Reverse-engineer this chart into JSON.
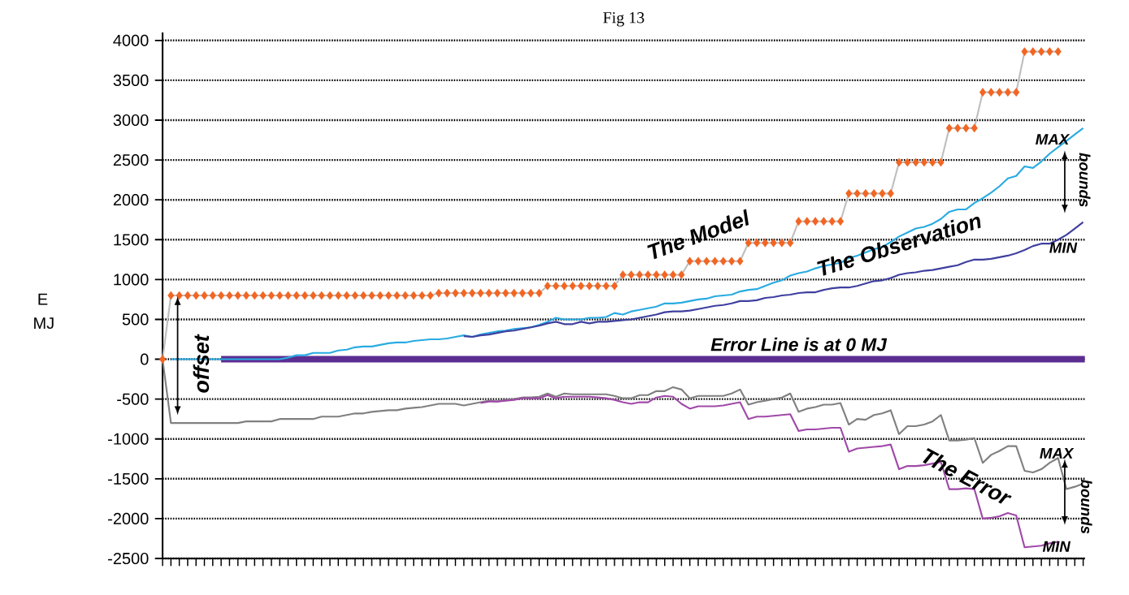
{
  "chart_data": {
    "type": "line",
    "title": "Fig 13",
    "ylabel": "E MJ",
    "categories": [
      null,
      null,
      null,
      null,
      null,
      null,
      null,
      null,
      null,
      null,
      null,
      null,
      null,
      null,
      null,
      null,
      null,
      null,
      null,
      null,
      null,
      null,
      null,
      null,
      null,
      null,
      null,
      null,
      null,
      null,
      null,
      null,
      null,
      null,
      null,
      null,
      null,
      null,
      null,
      null,
      null,
      null,
      null,
      null,
      null,
      null,
      null,
      null,
      null,
      null,
      null,
      null,
      null,
      null,
      null,
      null,
      null,
      null,
      null,
      null,
      null,
      null,
      null,
      null,
      null,
      null,
      null,
      null,
      null,
      null,
      null,
      null,
      null,
      null,
      null,
      null,
      null,
      null,
      null,
      null,
      null,
      null,
      null,
      null,
      null,
      null,
      null,
      null,
      null,
      null,
      null,
      null,
      null,
      null,
      null,
      null,
      null,
      null,
      null,
      null,
      null,
      null,
      null,
      null,
      null,
      null,
      null,
      null,
      null,
      null,
      null
    ],
    "series": [
      {
        "color": "#f26522",
        "marker": "diamond",
        "values": [
          0,
          800,
          800,
          800,
          800,
          800,
          800,
          800,
          800,
          800,
          800,
          800,
          800,
          800,
          800,
          800,
          800,
          800,
          800,
          800,
          800,
          800,
          800,
          800,
          800,
          800,
          800,
          800,
          800,
          800,
          800,
          800,
          800,
          830,
          830,
          830,
          830,
          830,
          830,
          830,
          830,
          830,
          830,
          830,
          830,
          830,
          920,
          920,
          920,
          920,
          920,
          920,
          920,
          920,
          920,
          1060,
          1060,
          1060,
          1060,
          1060,
          1060,
          1060,
          1060,
          1230,
          1230,
          1230,
          1230,
          1230,
          1230,
          1230,
          1460,
          1460,
          1460,
          1460,
          1460,
          1460,
          1730,
          1730,
          1730,
          1730,
          1730,
          1730,
          2080,
          2080,
          2080,
          2080,
          2080,
          2080,
          2470,
          2470,
          2470,
          2470,
          2470,
          2470,
          2900,
          2900,
          2900,
          2900,
          3350,
          3350,
          3350,
          3350,
          3350,
          3860,
          3860,
          3860,
          3860,
          3860,
          null,
          null,
          null
        ]
      },
      {
        "color": "#29abe2",
        "values": [
          null,
          0,
          0,
          0,
          0,
          0,
          0,
          0,
          0,
          0,
          0,
          0,
          0,
          0,
          0,
          20,
          50,
          50,
          80,
          80,
          80,
          110,
          120,
          150,
          160,
          160,
          180,
          200,
          210,
          210,
          230,
          240,
          250,
          250,
          260,
          280,
          300,
          280,
          310,
          330,
          350,
          360,
          380,
          390,
          400,
          430,
          470,
          520,
          500,
          500,
          500,
          520,
          520,
          530,
          580,
          560,
          600,
          620,
          640,
          660,
          700,
          700,
          710,
          730,
          750,
          760,
          790,
          800,
          810,
          850,
          870,
          880,
          920,
          960,
          990,
          1050,
          1080,
          1100,
          1140,
          1170,
          1190,
          1210,
          1270,
          1300,
          1340,
          1380,
          1410,
          1470,
          1540,
          1590,
          1640,
          1660,
          1700,
          1760,
          1850,
          1880,
          1880,
          1960,
          2020,
          2090,
          2170,
          2270,
          2300,
          2420,
          2400,
          2480,
          2580,
          2660,
          2740,
          2820,
          2900
        ]
      },
      {
        "color": "#3f3f9f",
        "values": [
          null,
          null,
          null,
          null,
          null,
          null,
          null,
          null,
          null,
          null,
          null,
          null,
          null,
          null,
          null,
          null,
          null,
          null,
          null,
          null,
          null,
          null,
          null,
          null,
          null,
          null,
          null,
          null,
          null,
          null,
          null,
          null,
          null,
          null,
          null,
          null,
          290,
          280,
          300,
          310,
          330,
          350,
          360,
          380,
          400,
          420,
          450,
          470,
          440,
          440,
          470,
          450,
          470,
          470,
          480,
          490,
          500,
          520,
          540,
          560,
          590,
          600,
          600,
          610,
          630,
          650,
          670,
          680,
          700,
          730,
          730,
          740,
          770,
          780,
          800,
          810,
          830,
          840,
          840,
          870,
          890,
          900,
          900,
          920,
          950,
          980,
          990,
          1020,
          1060,
          1080,
          1090,
          1110,
          1120,
          1140,
          1160,
          1180,
          1220,
          1250,
          1250,
          1260,
          1280,
          1300,
          1330,
          1370,
          1420,
          1450,
          1450,
          1500,
          1560,
          1640,
          1720
        ]
      },
      {
        "color": "#808080",
        "values": [
          0,
          -800,
          -800,
          -800,
          -800,
          -800,
          -800,
          -800,
          -800,
          -800,
          -780,
          -780,
          -780,
          -780,
          -750,
          -750,
          -750,
          -750,
          -750,
          -720,
          -720,
          -720,
          -700,
          -680,
          -680,
          -660,
          -650,
          -640,
          -640,
          -620,
          -610,
          -600,
          -580,
          -560,
          -560,
          -560,
          -580,
          -560,
          -540,
          -520,
          -530,
          -510,
          -500,
          -480,
          -480,
          -470,
          -430,
          -470,
          -430,
          -440,
          -440,
          -440,
          -440,
          -440,
          -460,
          -490,
          -490,
          -450,
          -450,
          -400,
          -400,
          -350,
          -380,
          -490,
          -460,
          -460,
          -460,
          -460,
          -430,
          -380,
          -570,
          -540,
          -520,
          -500,
          -480,
          -430,
          -660,
          -620,
          -600,
          -570,
          -570,
          -550,
          -820,
          -750,
          -760,
          -700,
          -680,
          -640,
          -940,
          -840,
          -840,
          -820,
          -780,
          -700,
          -1020,
          -1020,
          -1010,
          -990,
          -1300,
          -1200,
          -1150,
          -1090,
          -1090,
          -1400,
          -1420,
          -1380,
          -1300,
          -1240,
          -1630,
          -1600,
          -1560
        ]
      },
      {
        "color": "#a04aa8",
        "values": [
          null,
          null,
          null,
          null,
          null,
          null,
          null,
          null,
          null,
          null,
          null,
          null,
          null,
          null,
          null,
          null,
          null,
          null,
          null,
          null,
          null,
          null,
          null,
          null,
          null,
          null,
          null,
          null,
          null,
          null,
          null,
          null,
          null,
          null,
          null,
          null,
          null,
          null,
          -550,
          -530,
          -530,
          -520,
          -510,
          -490,
          -490,
          -490,
          -450,
          -490,
          -470,
          -470,
          -470,
          -470,
          -480,
          -490,
          -510,
          -540,
          -560,
          -540,
          -540,
          -480,
          -460,
          -470,
          -560,
          -620,
          -590,
          -590,
          -590,
          -580,
          -560,
          -540,
          -750,
          -720,
          -720,
          -710,
          -700,
          -690,
          -900,
          -880,
          -880,
          -870,
          -860,
          -860,
          -1160,
          -1120,
          -1110,
          -1100,
          -1090,
          -1070,
          -1380,
          -1340,
          -1340,
          -1330,
          -1310,
          -1290,
          -1630,
          -1630,
          -1620,
          -1630,
          -2000,
          -1990,
          -1970,
          -1930,
          -1960,
          -2360,
          -2350,
          -2340,
          -2310,
          -2290,
          null,
          null,
          null
        ]
      }
    ],
    "ylim": [
      -2500,
      4100
    ],
    "yticks": [
      -2500,
      -2000,
      -1500,
      -1000,
      -500,
      0,
      500,
      1000,
      1500,
      2000,
      2500,
      3000,
      3500,
      4000
    ],
    "grid": "y",
    "ref_lines": [
      {
        "axis": "y",
        "value": 0,
        "label": "Error Line is at 0 MJ",
        "color": "#5c2d91"
      }
    ],
    "annotations": [
      "The Model",
      "The Observation",
      "The Error",
      "offset",
      "MAX",
      "bounds",
      "MIN",
      "MAX",
      "bounds",
      "MIN"
    ]
  }
}
